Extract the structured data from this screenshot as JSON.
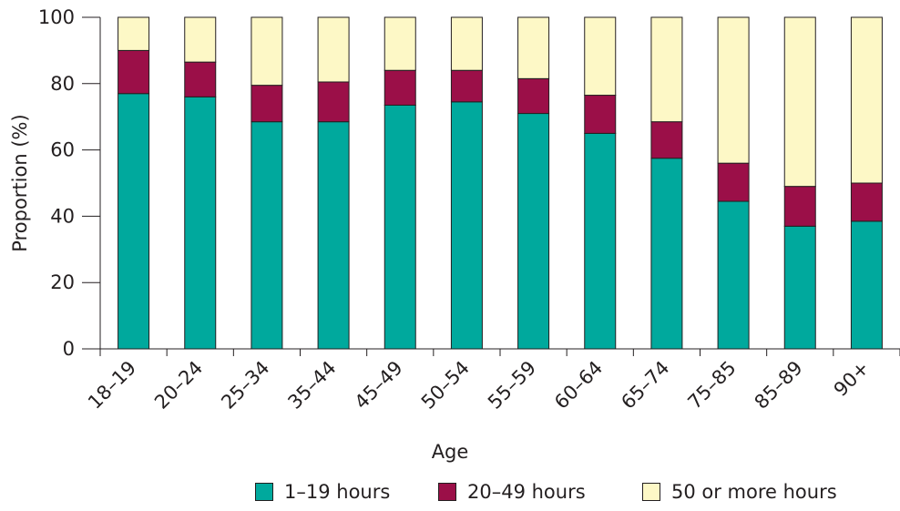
{
  "chart_data": {
    "type": "bar",
    "stacked": true,
    "xlabel": "Age",
    "ylabel": "Proportion (%)",
    "ylim": [
      0,
      100
    ],
    "yticks": [
      0,
      20,
      40,
      60,
      80,
      100
    ],
    "categories": [
      "18–19",
      "20–24",
      "25–34",
      "35–44",
      "45–49",
      "50–54",
      "55–59",
      "60–64",
      "65–74",
      "75–85",
      "85–89",
      "90+"
    ],
    "series": [
      {
        "name": "1–19 hours",
        "color": "#00a99d",
        "values": [
          77,
          76,
          68.5,
          68.5,
          73.5,
          74.5,
          71,
          65,
          57.5,
          44.5,
          37,
          38.5
        ]
      },
      {
        "name": "20–49 hours",
        "color": "#9b0f48",
        "values": [
          13,
          10.5,
          11,
          12,
          10.5,
          9.5,
          10.5,
          11.5,
          11,
          11.5,
          12,
          11.5
        ]
      },
      {
        "name": "50 or more hours",
        "color": "#fdf8c6",
        "values": [
          10,
          13.5,
          20.5,
          19.5,
          16,
          16,
          18.5,
          23.5,
          31.5,
          44,
          51,
          50
        ]
      }
    ],
    "legend_position": "bottom",
    "grid": false
  }
}
